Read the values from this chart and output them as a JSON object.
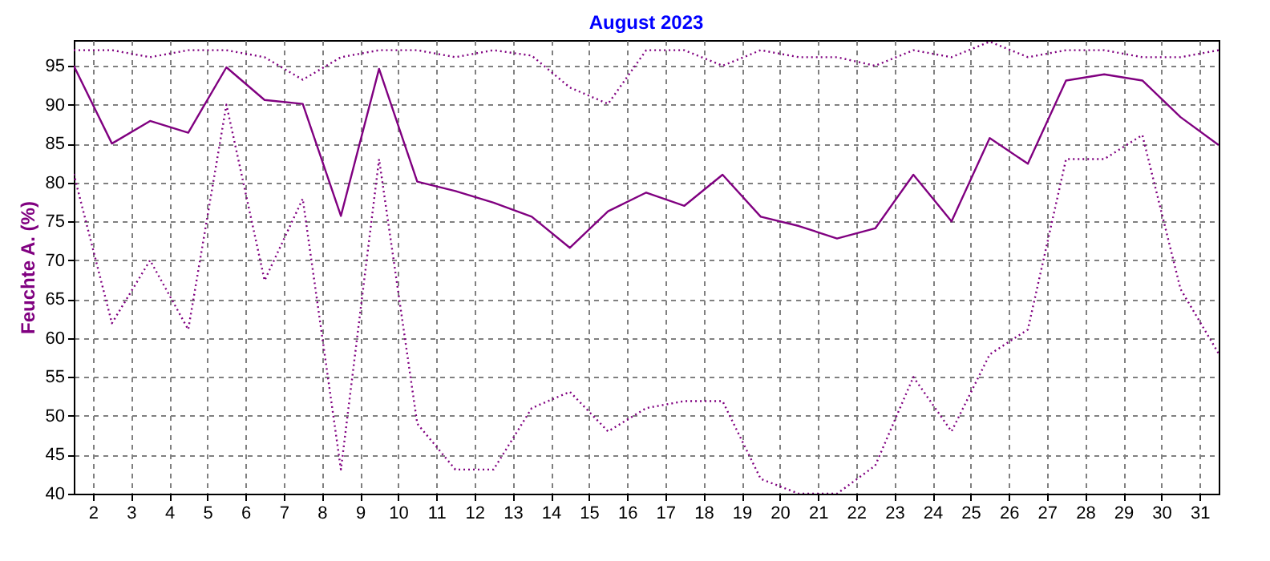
{
  "chart_data": {
    "type": "line",
    "title": "August 2023",
    "ylabel": "Feuchte A. (%)",
    "x": [
      1.5,
      2.5,
      3.5,
      4.5,
      5.5,
      6.5,
      7.5,
      8.5,
      9.5,
      10.5,
      11.5,
      12.5,
      13.5,
      14.5,
      15.5,
      16.5,
      17.5,
      18.5,
      19.5,
      20.5,
      21.5,
      22.5,
      23.5,
      24.5,
      25.5,
      26.5,
      27.5,
      28.5,
      29.5,
      30.5,
      31.5
    ],
    "series": [
      {
        "color": "#800080",
        "line_style": "dotted",
        "values": [
          97,
          97,
          96.1,
          97,
          97,
          96.1,
          93.2,
          96.1,
          97,
          97,
          96.1,
          97,
          96.3,
          92.2,
          90.1,
          97,
          97,
          95,
          97,
          96.1,
          96.1,
          95,
          97,
          96.1,
          98.1,
          96.1,
          97,
          97,
          96.1,
          96.1,
          97
        ]
      },
      {
        "color": "#800080",
        "line_style": "solid",
        "values": [
          95,
          85,
          87.9,
          86.4,
          94.8,
          90.6,
          90.1,
          75.7,
          94.6,
          80.1,
          78.9,
          77.4,
          75.6,
          71.6,
          76.3,
          78.7,
          77,
          81,
          75.6,
          74.4,
          72.8,
          74.1,
          81,
          75,
          85.7,
          82.4,
          93.1,
          93.9,
          93.1,
          88.4,
          84.8
        ]
      },
      {
        "color": "#800080",
        "line_style": "dotted",
        "values": [
          81.1,
          61.9,
          70,
          61.1,
          90,
          67.4,
          77.9,
          43.1,
          83,
          49,
          43.1,
          43.1,
          51,
          53.1,
          48,
          51,
          51.9,
          51.9,
          41.9,
          40,
          40,
          43.6,
          55,
          48,
          57.9,
          61.1,
          83,
          83,
          86.1,
          66.3,
          58
        ]
      }
    ],
    "xlim": [
      1.5,
      31.5
    ],
    "xticks": [
      2,
      3,
      4,
      5,
      6,
      7,
      8,
      9,
      10,
      11,
      12,
      13,
      14,
      15,
      16,
      17,
      18,
      19,
      20,
      21,
      22,
      23,
      24,
      25,
      26,
      27,
      28,
      29,
      30,
      31
    ],
    "ylim": [
      40,
      98.3
    ],
    "yticks": [
      40,
      45,
      50,
      55,
      60,
      65,
      70,
      75,
      80,
      85,
      90,
      95
    ],
    "grid": true,
    "marker": "none"
  }
}
